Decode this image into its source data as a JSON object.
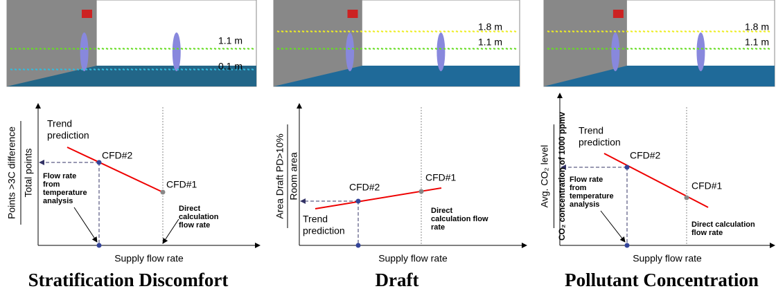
{
  "panels": [
    {
      "room_labels": [
        "1.1 m",
        "0.1 m"
      ],
      "y_label": [
        "Points >3C difference",
        "Total points"
      ],
      "x_label": "Supply flow rate",
      "trend_label": [
        "Trend",
        "prediction"
      ],
      "cfd2": "CFD#2",
      "cfd1": "CFD#1",
      "note_left": [
        "Flow rate",
        "from",
        "temperature",
        "analysis"
      ],
      "note_right": [
        "Direct",
        "calculation",
        "flow rate"
      ],
      "caption": "Stratification Discomfort"
    },
    {
      "room_labels": [
        "1.8 m",
        "1.1 m"
      ],
      "y_label": [
        "Area Draft PD>10%",
        "Room area"
      ],
      "x_label": "Supply flow rate",
      "trend_label": [
        "Trend",
        "prediction"
      ],
      "cfd2": "CFD#2",
      "cfd1": "CFD#1",
      "note_right": [
        "Direct",
        "calculation flow",
        "rate"
      ],
      "caption": "Draft"
    },
    {
      "room_labels": [
        "1.8 m",
        "1.1 m"
      ],
      "y_label": [
        "Avg. CO₂ level",
        "CO₂ concentration of 1000 ppmv"
      ],
      "x_label": "Supply flow rate",
      "trend_label": [
        "Trend",
        "prediction"
      ],
      "cfd2": "CFD#2",
      "cfd1": "CFD#1",
      "note_left": [
        "Flow rate",
        "from",
        "temperature",
        "analysis"
      ],
      "note_right": [
        "Direct calculation",
        "flow rate"
      ],
      "caption": "Pollutant Concentration"
    }
  ]
}
